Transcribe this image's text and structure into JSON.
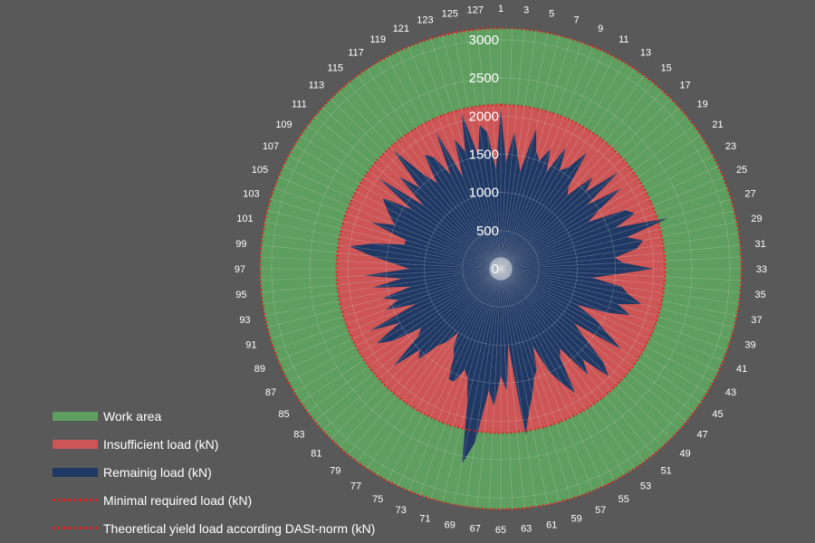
{
  "chart_data": {
    "type": "radar",
    "categories_count": 128,
    "labeled_categories": [
      1,
      3,
      5,
      7,
      9,
      11,
      13,
      15,
      17,
      19,
      21,
      23,
      25,
      27,
      29,
      31,
      33,
      35,
      37,
      39,
      41,
      43,
      45,
      47,
      49,
      51,
      53,
      55,
      57,
      59,
      61,
      63,
      65,
      67,
      69,
      71,
      73,
      75,
      77,
      79,
      81,
      83,
      85,
      87,
      89,
      91,
      93,
      95,
      97,
      99,
      101,
      103,
      105,
      107,
      109,
      111,
      113,
      115,
      117,
      119,
      121,
      123,
      125,
      127
    ],
    "radial_ticks": [
      0,
      500,
      1000,
      1500,
      2000,
      2500,
      3000
    ],
    "rmax": 3200,
    "series": [
      {
        "name": "Work area",
        "constant": 3150,
        "color": "#5e9e5e",
        "style": "fill"
      },
      {
        "name": "Insufficient load (kN)",
        "constant": 2150,
        "color": "#cd5555",
        "style": "fill"
      },
      {
        "name": "Remainig load (kN)",
        "color": "#1f3864",
        "style": "fill",
        "values": [
          2100,
          1400,
          1800,
          1500,
          1300,
          1900,
          1600,
          1500,
          1700,
          1400,
          1800,
          1500,
          1600,
          1900,
          1400,
          1300,
          1700,
          1500,
          2000,
          1400,
          1900,
          1500,
          1300,
          1800,
          1900,
          1600,
          2300,
          1700,
          1900,
          1800,
          1500,
          1600,
          2000,
          1500,
          1200,
          1600,
          1700,
          1900,
          1600,
          1800,
          1500,
          1100,
          1400,
          1600,
          1900,
          1200,
          1400,
          1800,
          2000,
          1600,
          1800,
          1300,
          1400,
          1900,
          1700,
          1500,
          1100,
          1400,
          1500,
          1700,
          1900,
          2200,
          1000,
          1600,
          1400,
          1800,
          1600,
          2300,
          2600,
          1800,
          1500,
          1400,
          1600,
          1600,
          1300,
          1200,
          1000,
          1200,
          1300,
          1600,
          1500,
          1900,
          1400,
          1300,
          1700,
          1900,
          1500,
          1900,
          1200,
          1600,
          1400,
          1600,
          1200,
          1700,
          1300,
          1800,
          1200,
          1400,
          1700,
          2000,
          1700,
          1300,
          1300,
          1800,
          1500,
          1600,
          1700,
          1800,
          1400,
          2000,
          1300,
          1800,
          1500,
          2100,
          1600,
          1400,
          1800,
          1700,
          1400,
          2000,
          1300,
          1800,
          1600,
          2100,
          1500,
          1900,
          1800,
          1300
        ]
      },
      {
        "name": "Minimal required load (kN)",
        "constant": 2150,
        "color": "#e02020",
        "style": "dotted"
      },
      {
        "name": "Theoretical yield load according DASt-norm (kN)",
        "constant": 3150,
        "color": "#e02020",
        "style": "dotted"
      }
    ],
    "inner_hub_value": 150,
    "grid": true
  },
  "legend": {
    "items": [
      {
        "label": "Work area",
        "color": "#5e9e5e",
        "style": "fill"
      },
      {
        "label": "Insufficient load (kN)",
        "color": "#cd5555",
        "style": "fill"
      },
      {
        "label": "Remainig load (kN)",
        "color": "#1f3864",
        "style": "fill"
      },
      {
        "label": "Minimal required load (kN)",
        "color": "#e02020",
        "style": "dotted"
      },
      {
        "label": "Theoretical yield load according DASt-norm (kN)",
        "color": "#e02020",
        "style": "dotted"
      }
    ]
  }
}
